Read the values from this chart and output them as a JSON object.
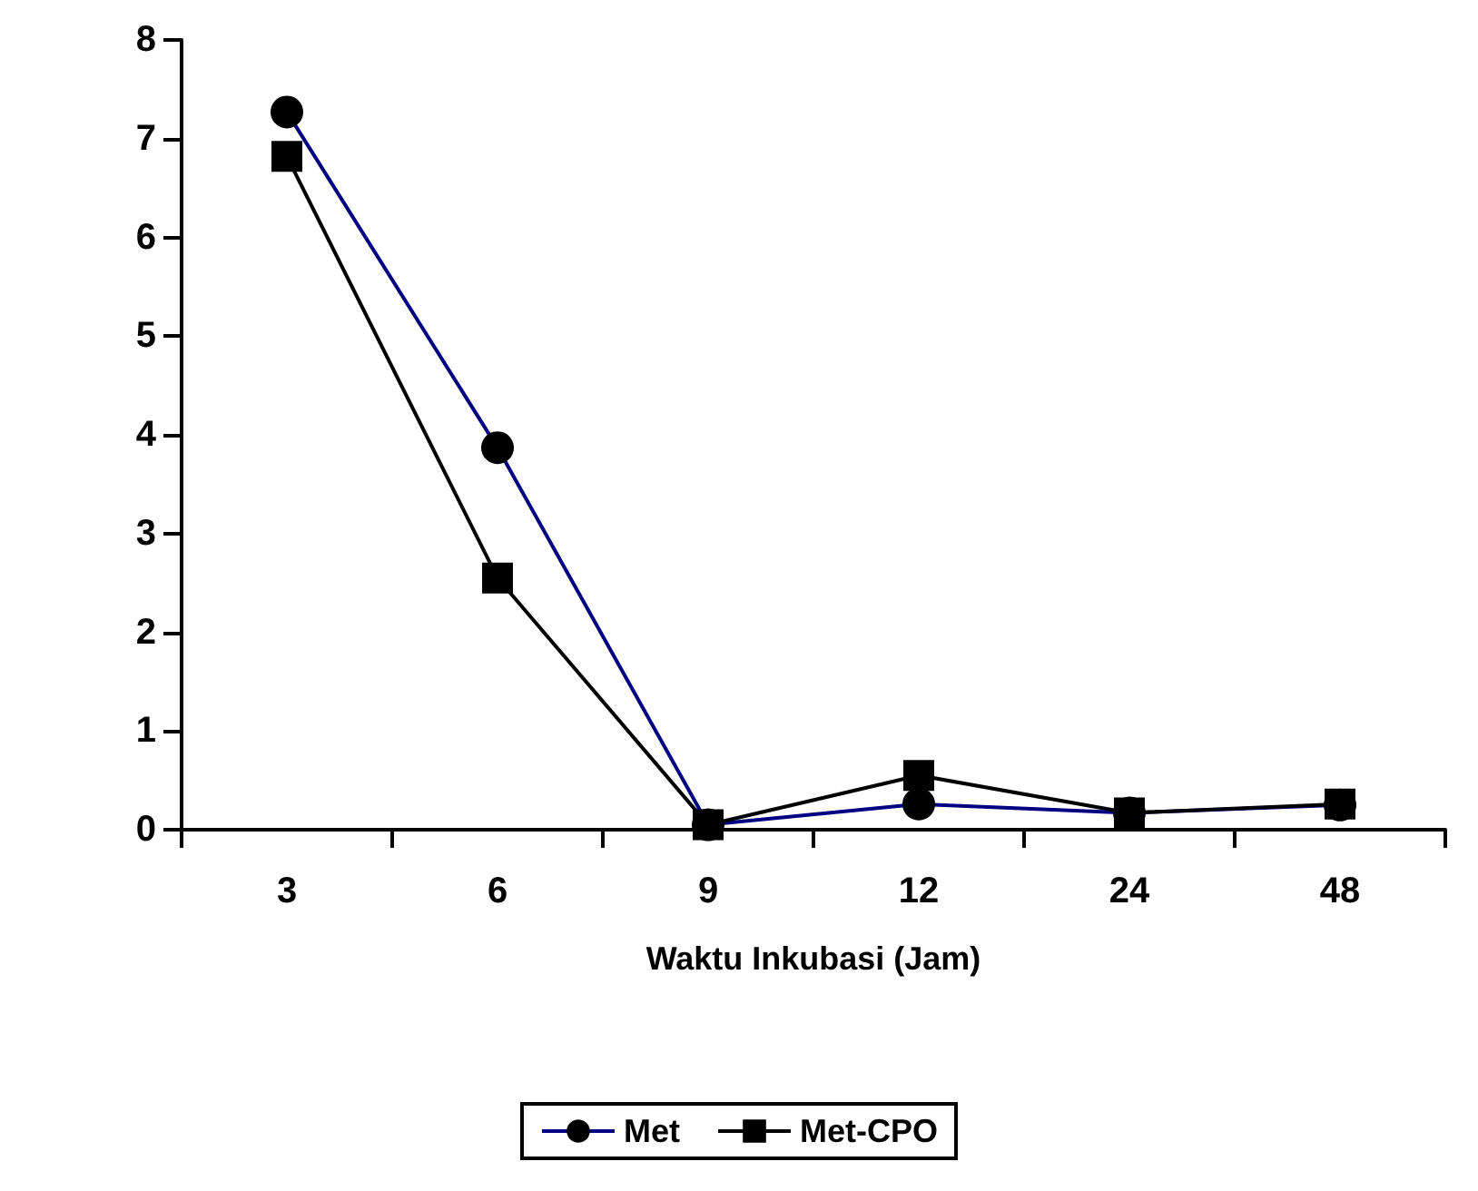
{
  "chart_data": {
    "type": "line",
    "xlabel": "Waktu Inkubasi (Jam)",
    "categories": [
      "3",
      "6",
      "9",
      "12",
      "24",
      "48"
    ],
    "series": [
      {
        "name": "Met",
        "color": "#000080",
        "marker": "circle",
        "values": [
          7.27,
          3.87,
          0.05,
          0.26,
          0.17,
          0.25
        ]
      },
      {
        "name": "Met-CPO",
        "color": "#000000",
        "marker": "square",
        "values": [
          6.82,
          2.55,
          0.05,
          0.55,
          0.17,
          0.26
        ]
      }
    ],
    "ylim": [
      0,
      8
    ],
    "yticks": [
      0,
      1,
      2,
      3,
      4,
      5,
      6,
      7,
      8
    ],
    "grid": false,
    "legend": "bottom"
  }
}
